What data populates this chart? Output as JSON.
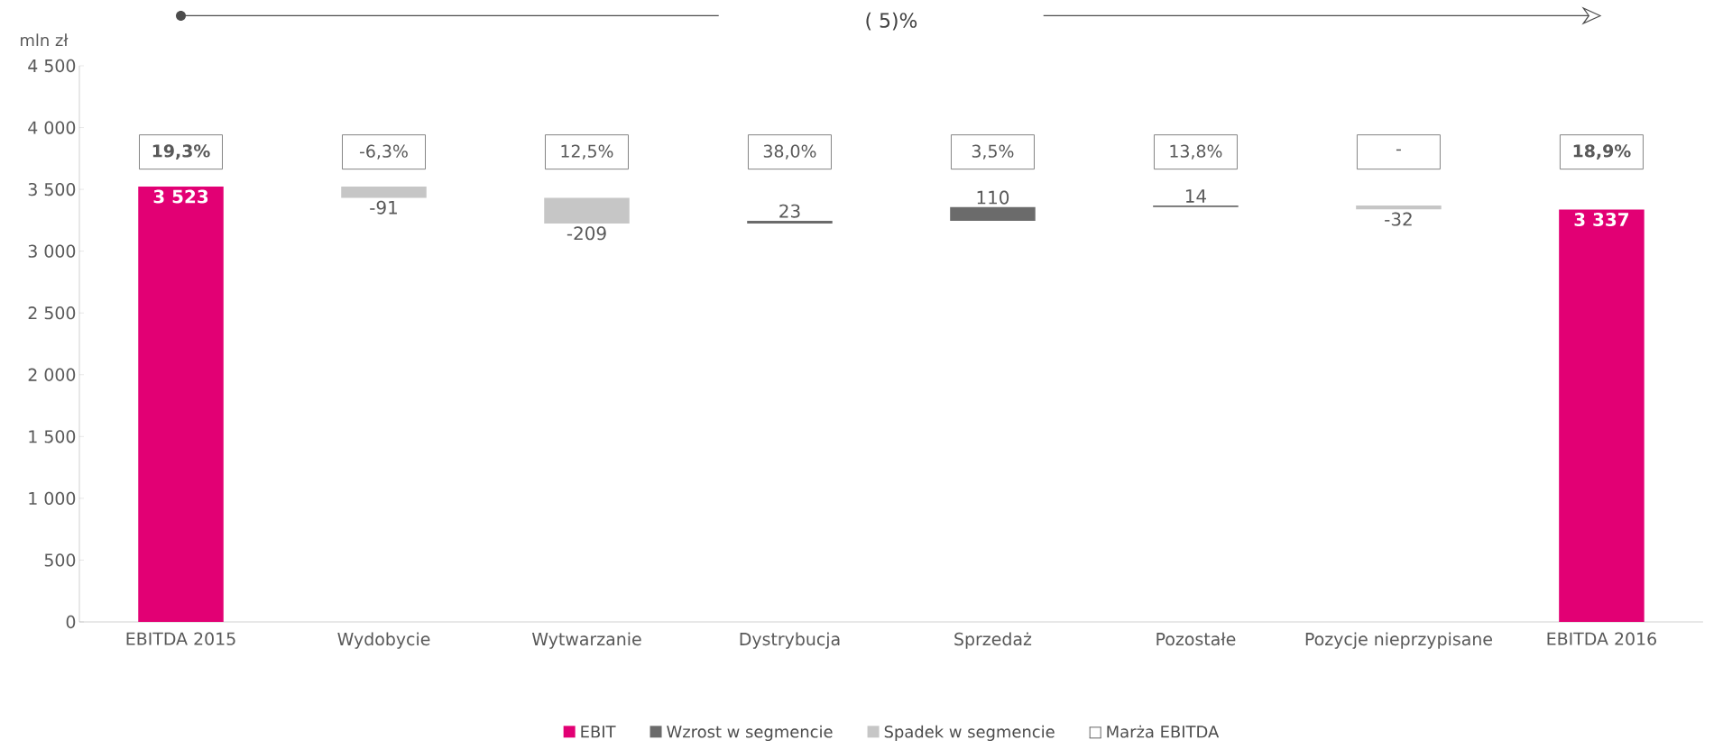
{
  "chart_data": {
    "type": "bar",
    "ylabel": "mln zł",
    "categories": [
      "EBITDA 2015",
      "Wydobycie",
      "Wytwarzanie",
      "Dystrybucja",
      "Sprzedaż",
      "Pozostałe",
      "Pozycje nieprzypisane",
      "EBITDA 2016"
    ],
    "series": [
      {
        "name": "EBIT",
        "color": "#e20074",
        "base": [
          0,
          null,
          null,
          null,
          null,
          null,
          null,
          0
        ],
        "values": [
          3523,
          null,
          null,
          null,
          null,
          null,
          null,
          3337
        ],
        "value_labels": [
          "3 523",
          null,
          null,
          null,
          null,
          null,
          null,
          "3 337"
        ]
      },
      {
        "name": "Wzrost w segmencie",
        "color": "#6b6b6b",
        "base": [
          null,
          null,
          null,
          3223,
          3246,
          3356,
          null,
          null
        ],
        "values": [
          null,
          null,
          null,
          23,
          110,
          14,
          null,
          null
        ],
        "value_labels": [
          null,
          null,
          null,
          "23",
          "110",
          "14",
          null,
          null
        ]
      },
      {
        "name": "Spadek w segmencie",
        "color": "#c6c6c6",
        "base": [
          null,
          3523,
          3432,
          null,
          null,
          null,
          3370,
          null
        ],
        "values": [
          null,
          -91,
          -209,
          null,
          null,
          null,
          -32,
          null
        ],
        "value_labels": [
          null,
          "-91",
          "-209",
          null,
          null,
          null,
          "-32",
          null
        ]
      }
    ],
    "ylim": [
      0,
      4500
    ],
    "yticks": [
      {
        "value": 0,
        "label": "0"
      },
      {
        "value": 500,
        "label": "500"
      },
      {
        "value": 1000,
        "label": "1 000"
      },
      {
        "value": 1500,
        "label": "1 500"
      },
      {
        "value": 2000,
        "label": "2 000"
      },
      {
        "value": 2500,
        "label": "2 500"
      },
      {
        "value": 3000,
        "label": "3 000"
      },
      {
        "value": 3500,
        "label": "3 500"
      },
      {
        "value": 4000,
        "label": "4 000"
      },
      {
        "value": 4500,
        "label": "4 500"
      }
    ],
    "annotations": [
      "( 5)%",
      "Marża EBITDA",
      "19,3%",
      "-6,3%",
      "12,5%",
      "38,0%",
      "3,5%",
      "13,8%",
      "-",
      "18,9%"
    ],
    "legend": "bottom",
    "grid": false
  }
}
